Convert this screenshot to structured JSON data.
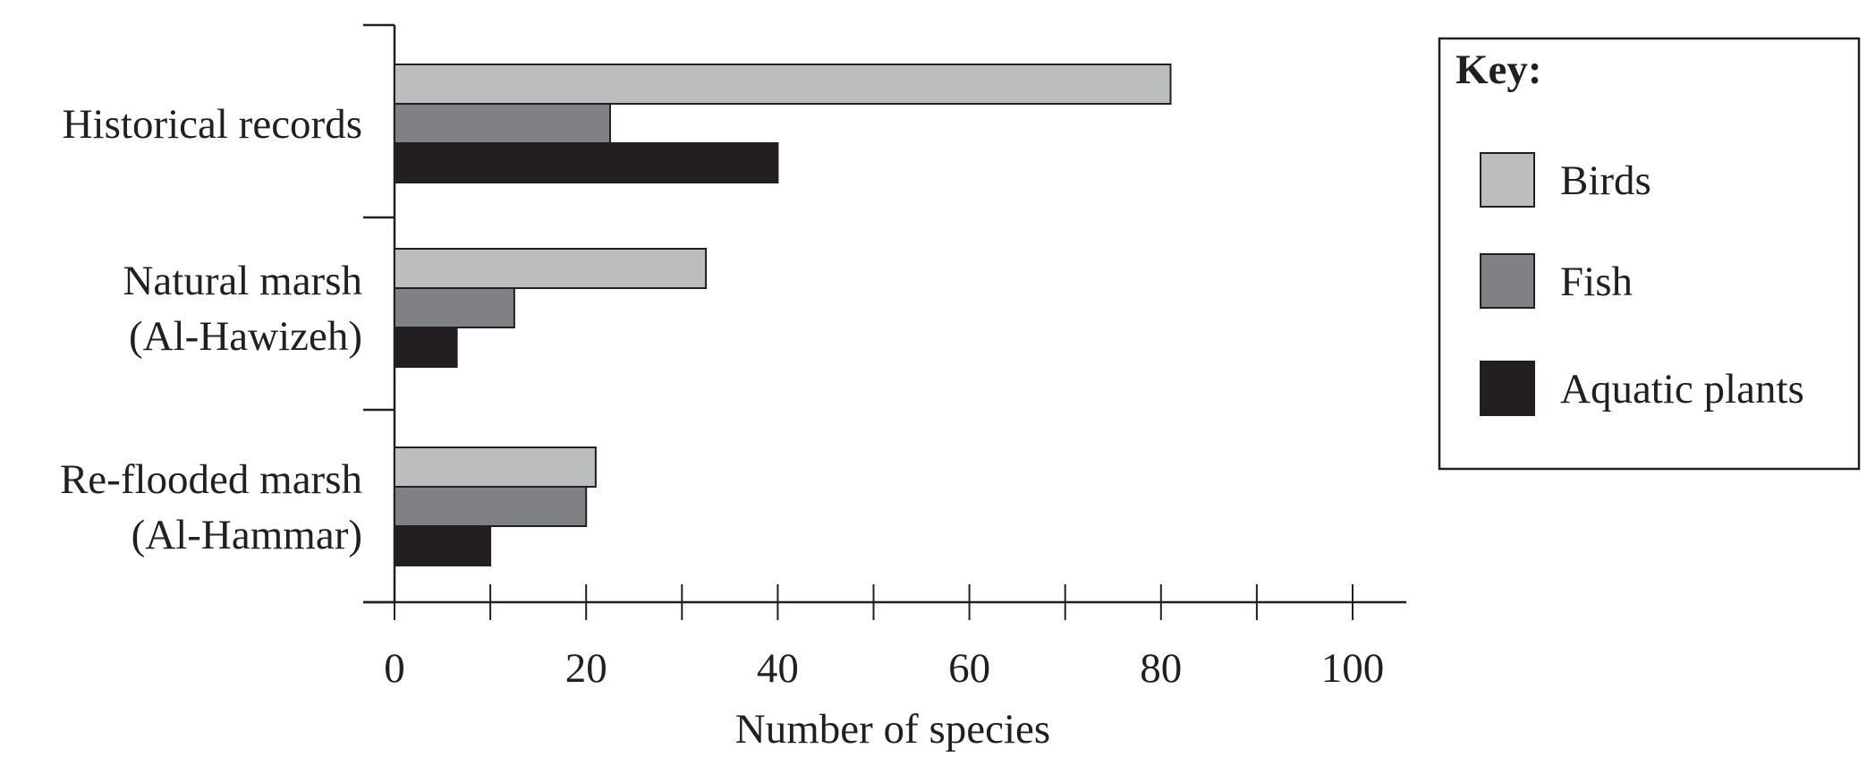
{
  "chart_data": {
    "type": "bar",
    "orientation": "horizontal",
    "title": "",
    "xlabel": "Number of species",
    "ylabel": "",
    "xlim": [
      0,
      100
    ],
    "x_ticks": [
      0,
      20,
      40,
      60,
      80,
      100
    ],
    "grid": false,
    "legend": {
      "title": "Key:",
      "placement": "right"
    },
    "categories": [
      [
        "Historical records"
      ],
      [
        "Natural marsh",
        "(Al-Hawizeh)"
      ],
      [
        "Re-flooded marsh",
        "(Al-Hammar)"
      ]
    ],
    "series": [
      {
        "name": "Birds",
        "color": "#bcbdbf",
        "values": [
          81,
          32.5,
          21
        ]
      },
      {
        "name": "Fish",
        "color": "#808184",
        "values": [
          22.5,
          12.5,
          20
        ]
      },
      {
        "name": "Aquatic plants",
        "color": "#231f20",
        "values": [
          40,
          6.5,
          10
        ]
      }
    ]
  }
}
